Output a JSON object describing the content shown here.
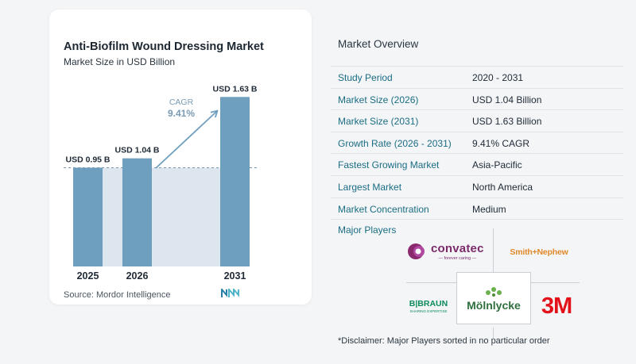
{
  "chart_data": {
    "type": "bar",
    "title": "Anti-Biofilm Wound Dressing Market",
    "subtitle": "Market Size in USD Billion",
    "categories": [
      "2025",
      "2026",
      "2031"
    ],
    "values": [
      0.95,
      1.04,
      1.63
    ],
    "value_labels": [
      "USD 0.95 B",
      "USD 1.04 B",
      "USD 1.63 B"
    ],
    "ylim": [
      0,
      1.8
    ],
    "cagr_label": "CAGR",
    "cagr_value": "9.41%",
    "bar_color": "#6f9fbf",
    "baseline_band_color": "#dde6ef"
  },
  "source": "Source:  Mordor Intelligence",
  "overview": {
    "title": "Market Overview",
    "rows": [
      {
        "key": "Study Period",
        "value": "2020 - 2031"
      },
      {
        "key": "Market Size (2026)",
        "value": "USD 1.04 Billion"
      },
      {
        "key": "Market Size (2031)",
        "value": "USD 1.63 Billion"
      },
      {
        "key": "Growth Rate (2026 - 2031)",
        "value": "9.41% CAGR"
      },
      {
        "key": "Fastest Growing Market",
        "value": "Asia-Pacific"
      },
      {
        "key": "Largest Market",
        "value": "North America"
      },
      {
        "key": "Market Concentration",
        "value": "Medium"
      }
    ],
    "players_label": "Major Players",
    "players": {
      "convatec": "convatec",
      "convatec_tagline": "— forever caring —",
      "smith_nephew": "Smith+Nephew",
      "bbraun": "B|BRAUN",
      "bbraun_tagline": "SHARING EXPERTISE",
      "molnlycke": "Mölnlycke",
      "threem": "3M"
    },
    "disclaimer": "*Disclaimer: Major Players sorted in no particular order"
  }
}
